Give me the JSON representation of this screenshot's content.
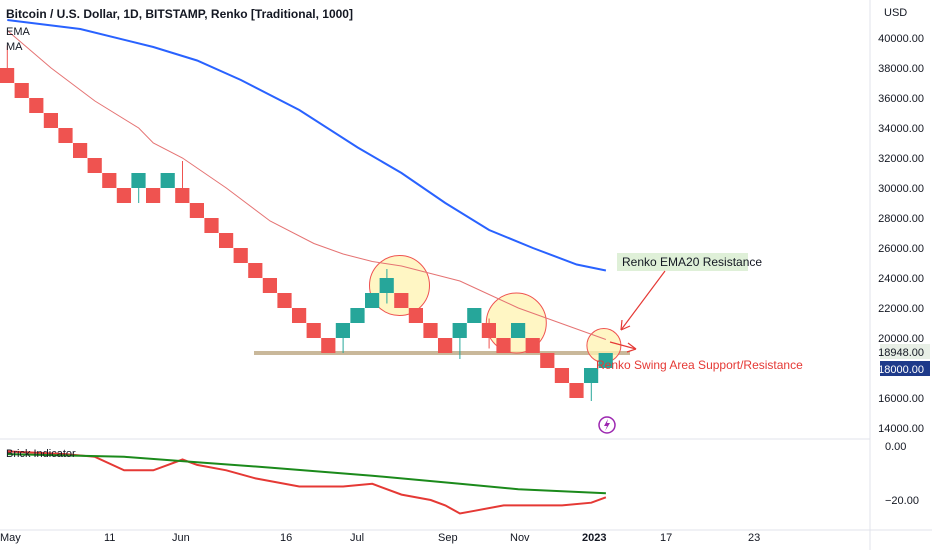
{
  "header": {
    "symbol_line": "Bitcoin / U.S. Dollar, 1D, BITSTAMP, Renko [Traditional, 1000]",
    "indicators": [
      "EMA",
      "MA"
    ]
  },
  "price_axis": {
    "currency": "USD",
    "ticks": [
      "40000.00",
      "38000.00",
      "36000.00",
      "34000.00",
      "32000.00",
      "30000.00",
      "28000.00",
      "26000.00",
      "24000.00",
      "22000.00",
      "20000.00",
      "16000.00",
      "14000.00"
    ],
    "last_price_label": "18948.00",
    "current_brick_label": "18000.00",
    "colors": {
      "last_price_bg": "#e8efe6",
      "current_brick_bg": "#1e3a8a"
    }
  },
  "indicator_pane": {
    "title": "Brick Indicator",
    "ticks": [
      "0.00",
      "−20.00"
    ]
  },
  "time_axis": {
    "labels": [
      "May",
      "11",
      "Jun",
      "16",
      "Jul",
      "Sep",
      "Nov",
      "2023",
      "17",
      "23"
    ]
  },
  "annotations": {
    "ema_resistance": "Renko EMA20 Resistance",
    "swing_area": "Renko Swing Area Support/Resistance"
  },
  "icons": {
    "lightning": "lightning-icon"
  },
  "colors": {
    "up_brick": "#26a69a",
    "down_brick": "#ef5350",
    "ema_line": "#e57373",
    "ma_line": "#2962ff",
    "support_band": "#c9b89a",
    "circle_fill": "#fff3b0",
    "circle_stroke": "#ef5350",
    "brick_line": "#e53935",
    "brick_signal": "#1b8a1b",
    "lightning": "#9c27b0"
  },
  "chart_data": {
    "type": "renko",
    "brick_size": 1000,
    "y_unit": "USD",
    "ylim": [
      13400,
      41500
    ],
    "bricks": [
      {
        "dir": "down",
        "low": 37000,
        "high": 38000
      },
      {
        "dir": "down",
        "low": 36000,
        "high": 37000
      },
      {
        "dir": "down",
        "low": 35000,
        "high": 36000
      },
      {
        "dir": "down",
        "low": 34000,
        "high": 35000
      },
      {
        "dir": "down",
        "low": 33000,
        "high": 34000
      },
      {
        "dir": "down",
        "low": 32000,
        "high": 33000
      },
      {
        "dir": "down",
        "low": 31000,
        "high": 32000
      },
      {
        "dir": "down",
        "low": 30000,
        "high": 31000
      },
      {
        "dir": "down",
        "low": 29000,
        "high": 30000
      },
      {
        "dir": "up",
        "low": 30000,
        "high": 31000
      },
      {
        "dir": "down",
        "low": 29000,
        "high": 30000
      },
      {
        "dir": "up",
        "low": 30000,
        "high": 31000
      },
      {
        "dir": "down",
        "low": 29000,
        "high": 30000
      },
      {
        "dir": "down",
        "low": 28000,
        "high": 29000
      },
      {
        "dir": "down",
        "low": 27000,
        "high": 28000
      },
      {
        "dir": "down",
        "low": 26000,
        "high": 27000
      },
      {
        "dir": "down",
        "low": 25000,
        "high": 26000
      },
      {
        "dir": "down",
        "low": 24000,
        "high": 25000
      },
      {
        "dir": "down",
        "low": 23000,
        "high": 24000
      },
      {
        "dir": "down",
        "low": 22000,
        "high": 23000
      },
      {
        "dir": "down",
        "low": 21000,
        "high": 22000
      },
      {
        "dir": "down",
        "low": 20000,
        "high": 21000
      },
      {
        "dir": "down",
        "low": 19000,
        "high": 20000
      },
      {
        "dir": "up",
        "low": 20000,
        "high": 21000
      },
      {
        "dir": "up",
        "low": 21000,
        "high": 22000
      },
      {
        "dir": "up",
        "low": 22000,
        "high": 23000
      },
      {
        "dir": "up",
        "low": 23000,
        "high": 24000
      },
      {
        "dir": "down",
        "low": 22000,
        "high": 23000
      },
      {
        "dir": "down",
        "low": 21000,
        "high": 22000
      },
      {
        "dir": "down",
        "low": 20000,
        "high": 21000
      },
      {
        "dir": "down",
        "low": 19000,
        "high": 20000
      },
      {
        "dir": "up",
        "low": 20000,
        "high": 21000
      },
      {
        "dir": "up",
        "low": 21000,
        "high": 22000
      },
      {
        "dir": "down",
        "low": 20000,
        "high": 21000
      },
      {
        "dir": "down",
        "low": 19000,
        "high": 20000
      },
      {
        "dir": "up",
        "low": 20000,
        "high": 21000
      },
      {
        "dir": "down",
        "low": 19000,
        "high": 20000
      },
      {
        "dir": "down",
        "low": 18000,
        "high": 19000
      },
      {
        "dir": "down",
        "low": 17000,
        "high": 18000
      },
      {
        "dir": "down",
        "low": 16000,
        "high": 17000
      },
      {
        "dir": "up",
        "low": 17000,
        "high": 18000
      },
      {
        "dir": "up",
        "low": 18000,
        "high": 19000
      }
    ],
    "wicks": [
      {
        "brick": 0,
        "low": 37000,
        "high": 39500
      },
      {
        "brick": 9,
        "low": 29000,
        "high": 31000
      },
      {
        "brick": 12,
        "low": 29000,
        "high": 31800
      },
      {
        "brick": 23,
        "low": 19000,
        "high": 21000
      },
      {
        "brick": 26,
        "low": 22300,
        "high": 24600
      },
      {
        "brick": 31,
        "low": 18600,
        "high": 21000
      },
      {
        "brick": 33,
        "low": 19300,
        "high": 21300
      },
      {
        "brick": 40,
        "low": 15800,
        "high": 18000
      }
    ],
    "ema_line": [
      [
        0,
        40500
      ],
      [
        3,
        38000
      ],
      [
        6,
        35800
      ],
      [
        9,
        34000
      ],
      [
        10,
        33000
      ],
      [
        12,
        32000
      ],
      [
        15,
        30000
      ],
      [
        18,
        27800
      ],
      [
        21,
        26300
      ],
      [
        23,
        25600
      ],
      [
        25,
        25100
      ],
      [
        27,
        24800
      ],
      [
        29,
        24300
      ],
      [
        31,
        23800
      ],
      [
        33,
        22900
      ],
      [
        35,
        22000
      ],
      [
        37,
        21300
      ],
      [
        39,
        20600
      ],
      [
        41,
        19900
      ]
    ],
    "ma_line": [
      [
        0,
        41200
      ],
      [
        5,
        40600
      ],
      [
        10,
        39400
      ],
      [
        13,
        38500
      ],
      [
        16,
        37200
      ],
      [
        20,
        35200
      ],
      [
        24,
        32700
      ],
      [
        27,
        31000
      ],
      [
        30,
        29000
      ],
      [
        33,
        27200
      ],
      [
        36,
        26000
      ],
      [
        39,
        24900
      ],
      [
        41,
        24500
      ]
    ],
    "support_level": 19000,
    "indicator": {
      "ylim": [
        -27,
        0
      ],
      "brick_line": [
        [
          0,
          -2
        ],
        [
          4,
          -3
        ],
        [
          6,
          -4
        ],
        [
          8,
          -9
        ],
        [
          10,
          -9
        ],
        [
          11,
          -7
        ],
        [
          12,
          -5
        ],
        [
          13,
          -7
        ],
        [
          15,
          -9
        ],
        [
          17,
          -12
        ],
        [
          20,
          -15
        ],
        [
          23,
          -15
        ],
        [
          25,
          -14
        ],
        [
          27,
          -18
        ],
        [
          29,
          -20
        ],
        [
          30,
          -22
        ],
        [
          31,
          -25
        ],
        [
          32,
          -24
        ],
        [
          34,
          -22
        ],
        [
          38,
          -22
        ],
        [
          40,
          -21
        ],
        [
          41,
          -19
        ]
      ],
      "signal_line": [
        [
          0,
          -3
        ],
        [
          8,
          -4
        ],
        [
          13,
          -6
        ],
        [
          18,
          -8
        ],
        [
          25,
          -11
        ],
        [
          31,
          -14
        ],
        [
          35,
          -16
        ],
        [
          41,
          -17.5
        ]
      ]
    }
  }
}
